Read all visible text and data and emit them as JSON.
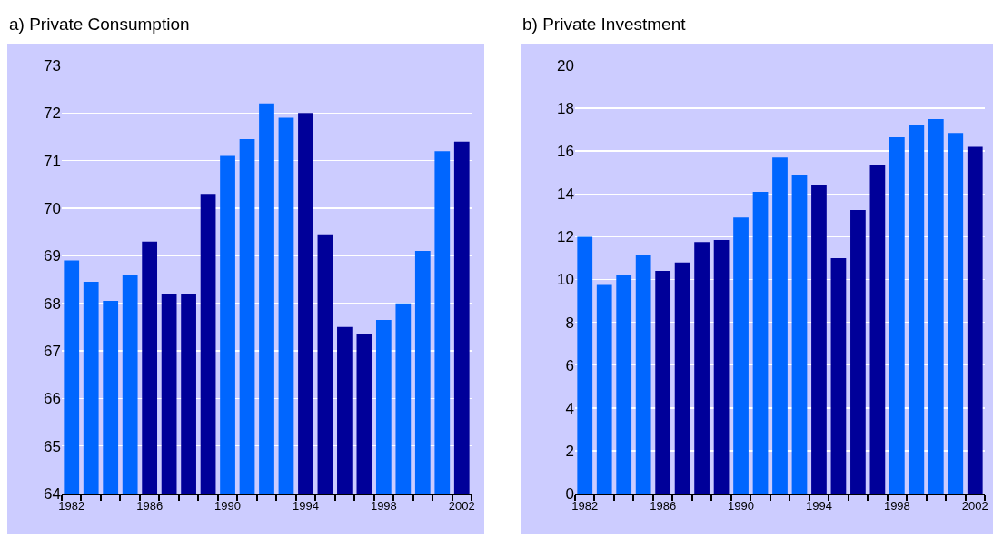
{
  "chart_data": [
    {
      "type": "bar",
      "title": "a) Private Consumption",
      "categories": [
        "1982",
        null,
        null,
        null,
        "1986",
        null,
        null,
        null,
        "1990",
        null,
        null,
        null,
        "1994",
        null,
        null,
        null,
        "1998",
        null,
        null,
        null,
        "2002"
      ],
      "values": [
        68.9,
        68.45,
        68.05,
        68.6,
        69.3,
        68.2,
        68.2,
        70.3,
        71.1,
        71.45,
        72.2,
        71.9,
        72.0,
        69.45,
        67.5,
        67.35,
        67.65,
        68.0,
        69.1,
        71.2,
        71.4
      ],
      "colors": [
        "#0066ff",
        "#0066ff",
        "#0066ff",
        "#0066ff",
        "#000099",
        "#000099",
        "#000099",
        "#000099",
        "#0066ff",
        "#0066ff",
        "#0066ff",
        "#0066ff",
        "#000099",
        "#000099",
        "#000099",
        "#000099",
        "#0066ff",
        "#0066ff",
        "#0066ff",
        "#0066ff",
        "#000099"
      ],
      "ylim": [
        64,
        73
      ],
      "yticks": [
        64,
        65,
        66,
        67,
        68,
        69,
        70,
        71,
        72,
        73
      ],
      "grid": "y"
    },
    {
      "type": "bar",
      "title": "b) Private Investment",
      "categories": [
        "1982",
        null,
        null,
        null,
        "1986",
        null,
        null,
        null,
        "1990",
        null,
        null,
        null,
        "1994",
        null,
        null,
        null,
        "1998",
        null,
        null,
        null,
        "2002"
      ],
      "values": [
        12.0,
        9.75,
        10.2,
        11.15,
        10.4,
        10.8,
        11.75,
        11.85,
        12.9,
        14.1,
        15.7,
        14.9,
        14.4,
        11.0,
        13.25,
        15.35,
        16.65,
        17.2,
        17.5,
        16.85,
        16.2
      ],
      "colors": [
        "#0066ff",
        "#0066ff",
        "#0066ff",
        "#0066ff",
        "#000099",
        "#000099",
        "#000099",
        "#000099",
        "#0066ff",
        "#0066ff",
        "#0066ff",
        "#0066ff",
        "#000099",
        "#000099",
        "#000099",
        "#000099",
        "#0066ff",
        "#0066ff",
        "#0066ff",
        "#0066ff",
        "#000099"
      ],
      "ylim": [
        0,
        20
      ],
      "yticks": [
        0,
        2,
        4,
        6,
        8,
        10,
        12,
        14,
        16,
        18,
        20
      ],
      "grid": "y"
    }
  ]
}
